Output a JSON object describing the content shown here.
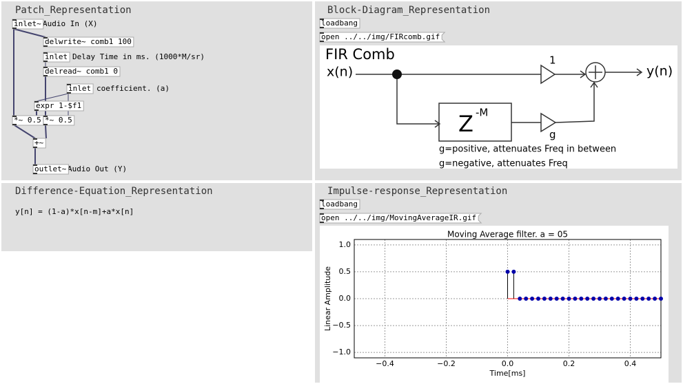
{
  "patch": {
    "title": "Patch_Representation",
    "objects": [
      "inlet~",
      "delwrite~ comb1 100",
      "inlet",
      "delread~ comb1 0",
      "inlet",
      "expr 1-$f1",
      "*~ 0.5",
      "*~ 0.5",
      "+~",
      "outlet~"
    ],
    "comments": [
      "Audio In (X)",
      "Delay Time in ms. (1000*M/sr)",
      "coefficient. (a)",
      "Audio Out (Y)"
    ]
  },
  "block_diagram": {
    "title": "Block-Diagram_Representation",
    "objects": [
      "loadbang",
      "open ../../img/FIRcomb.gif"
    ],
    "image": {
      "heading": "FIR Comb",
      "input": "x(n)",
      "output": "y(n)",
      "gain_top": "1",
      "delay": "Z",
      "delay_exp": "-M",
      "gain": "g",
      "notes": [
        "g=positive, attenuates Freq in between",
        "g=negative, attenuates Freq"
      ]
    }
  },
  "difference_equation": {
    "title": "Difference-Equation_Representation",
    "equation": "y[n] = (1-a)*x[n-m]+a*x[n]"
  },
  "impulse_response": {
    "title": "Impulse-response_Representation",
    "objects": [
      "loadbang",
      "open ../../img/MovingAverageIR.gif"
    ],
    "plot": {
      "type": "stem",
      "title": "Moving Average filter. a = 05",
      "x_label": "Time[ms]",
      "y_label": "Linear Amplitude",
      "x": [
        0,
        0.02,
        0.04,
        0.06,
        0.08,
        0.1,
        0.12,
        0.14,
        0.16,
        0.18,
        0.2,
        0.22,
        0.24,
        0.26,
        0.28,
        0.3,
        0.32,
        0.34,
        0.36,
        0.38,
        0.4,
        0.42,
        0.44,
        0.46,
        0.48,
        0.5
      ],
      "values": [
        0.5,
        0.5,
        0,
        0,
        0,
        0,
        0,
        0,
        0,
        0,
        0,
        0,
        0,
        0,
        0,
        0,
        0,
        0,
        0,
        0,
        0,
        0,
        0,
        0,
        0,
        0
      ],
      "xlim": [
        -0.5,
        0.5
      ],
      "ylim": [
        -1.1,
        1.1
      ],
      "xticks": [
        {
          "value": -0.4,
          "label": "−0.4"
        },
        {
          "value": -0.2,
          "label": "−0.2"
        },
        {
          "value": 0,
          "label": "0.0"
        },
        {
          "value": 0.2,
          "label": "0.2"
        },
        {
          "value": 0.4,
          "label": "0.4"
        }
      ],
      "yticks": [
        {
          "value": 1,
          "label": "1.0"
        },
        {
          "value": 0.5,
          "label": "0.5"
        },
        {
          "value": 0,
          "label": "0.0"
        },
        {
          "value": -0.5,
          "label": "−0.5"
        },
        {
          "value": -1,
          "label": "−1.0"
        }
      ],
      "grid": true,
      "color": "#0000aa",
      "stem_color": "#000000",
      "baseline_color": "#ff0000"
    }
  }
}
